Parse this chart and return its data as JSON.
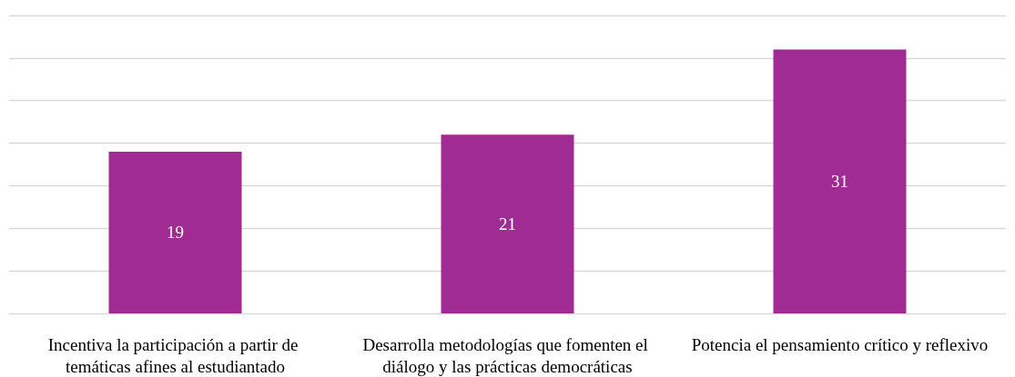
{
  "chart_data": {
    "type": "bar",
    "categories": [
      "Incentiva la participación a partir de temáticas afines al estudiantado",
      "Desarrolla metodologías que fomenten el diálogo y las prácticas democráticas",
      "Potencia el pensamiento crítico y reflexivo"
    ],
    "values": [
      19,
      21,
      31
    ],
    "color": "#a02b93",
    "data_labels": true,
    "ylim": [
      0,
      35
    ],
    "yticks": [
      {
        "value": 0,
        "label": null
      },
      {
        "value": 5,
        "label": null
      },
      {
        "value": 10,
        "label": null
      },
      {
        "value": 15,
        "label": null
      },
      {
        "value": 20,
        "label": null
      },
      {
        "value": 25,
        "label": null
      },
      {
        "value": 30,
        "label": null
      },
      {
        "value": 35,
        "label": null
      }
    ],
    "grid": true,
    "tick_labels": "x"
  }
}
